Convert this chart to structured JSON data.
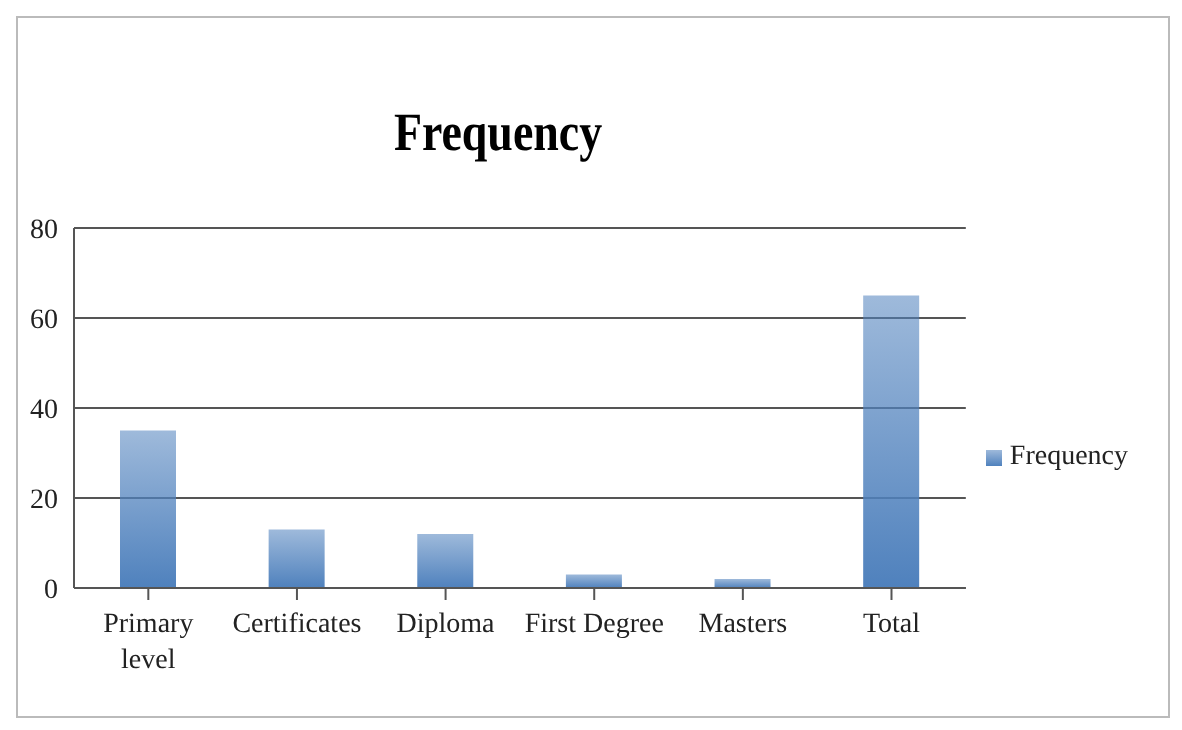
{
  "chart_data": {
    "type": "bar",
    "title": "Frequency",
    "categories": [
      "Primary level",
      "Certificates",
      "Diploma",
      "First Degree",
      "Masters",
      "Total"
    ],
    "series": [
      {
        "name": "Frequency",
        "color": "#4f81bd",
        "values": [
          35,
          13,
          12,
          3,
          2,
          65
        ]
      }
    ],
    "ylim": [
      0,
      80
    ],
    "yticks": [
      0,
      20,
      40,
      60,
      80
    ],
    "grid": "y",
    "legend": "right"
  }
}
